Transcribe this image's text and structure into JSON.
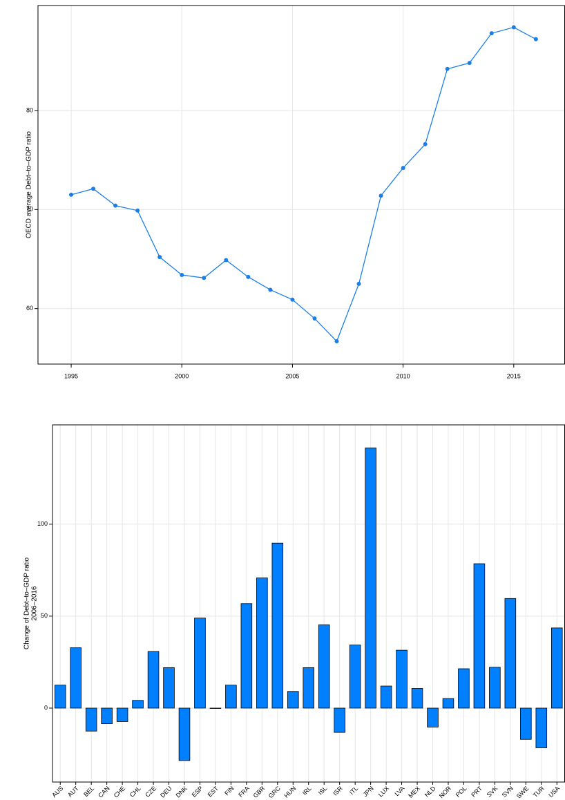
{
  "chart_data": [
    {
      "type": "line",
      "ylabel": [
        "OECD average Debt–to–GDP ratio"
      ],
      "color": "#1a7fe8",
      "x": [
        1995,
        1996,
        1997,
        1998,
        1999,
        2000,
        2001,
        2002,
        2003,
        2004,
        2005,
        2006,
        2007,
        2008,
        2009,
        2010,
        2011,
        2012,
        2013,
        2014,
        2015,
        2016
      ],
      "values": [
        71.5,
        72.1,
        70.4,
        69.9,
        65.2,
        63.4,
        63.1,
        64.9,
        63.2,
        61.9,
        60.9,
        59.0,
        56.7,
        62.5,
        71.4,
        74.2,
        76.6,
        84.2,
        84.8,
        87.8,
        88.4,
        87.2
      ],
      "xlim": [
        1993.5,
        2017.3
      ],
      "xticks": [
        1995,
        2000,
        2005,
        2010,
        2015
      ],
      "ylim": [
        54.4,
        90.6
      ],
      "yticks": [
        60,
        70,
        80
      ],
      "grid": true
    },
    {
      "type": "bar",
      "ylabel": [
        "Change of Debt–to–GDP ratio",
        "2006–2016"
      ],
      "color": "#0080ff",
      "categories": [
        "AUS",
        "AUT",
        "BEL",
        "CAN",
        "CHE",
        "CHL",
        "CZE",
        "DEU",
        "DNK",
        "ESP",
        "EST",
        "FIN",
        "FRA",
        "GBR",
        "GRC",
        "HUN",
        "IRL",
        "ISL",
        "ISR",
        "ITL",
        "JPN",
        "LUX",
        "LVA",
        "MEX",
        "NLD",
        "NOR",
        "POL",
        "PRT",
        "SVK",
        "SVN",
        "SWE",
        "TUR",
        "USA"
      ],
      "values": [
        12.5,
        32.8,
        -12.5,
        -8.5,
        -7.3,
        4.2,
        30.8,
        22,
        -28.5,
        49,
        -0.2,
        12.5,
        56.8,
        70.8,
        89.7,
        9.1,
        22,
        45.3,
        -13.2,
        34.3,
        141.5,
        12,
        31.5,
        10.7,
        -10.3,
        5.2,
        21.4,
        78.5,
        22.2,
        59.6,
        -17,
        -21.6,
        43.6
      ],
      "ylim": [
        -40.2,
        154
      ],
      "yticks": [
        0,
        50,
        100
      ],
      "grid": true
    }
  ]
}
